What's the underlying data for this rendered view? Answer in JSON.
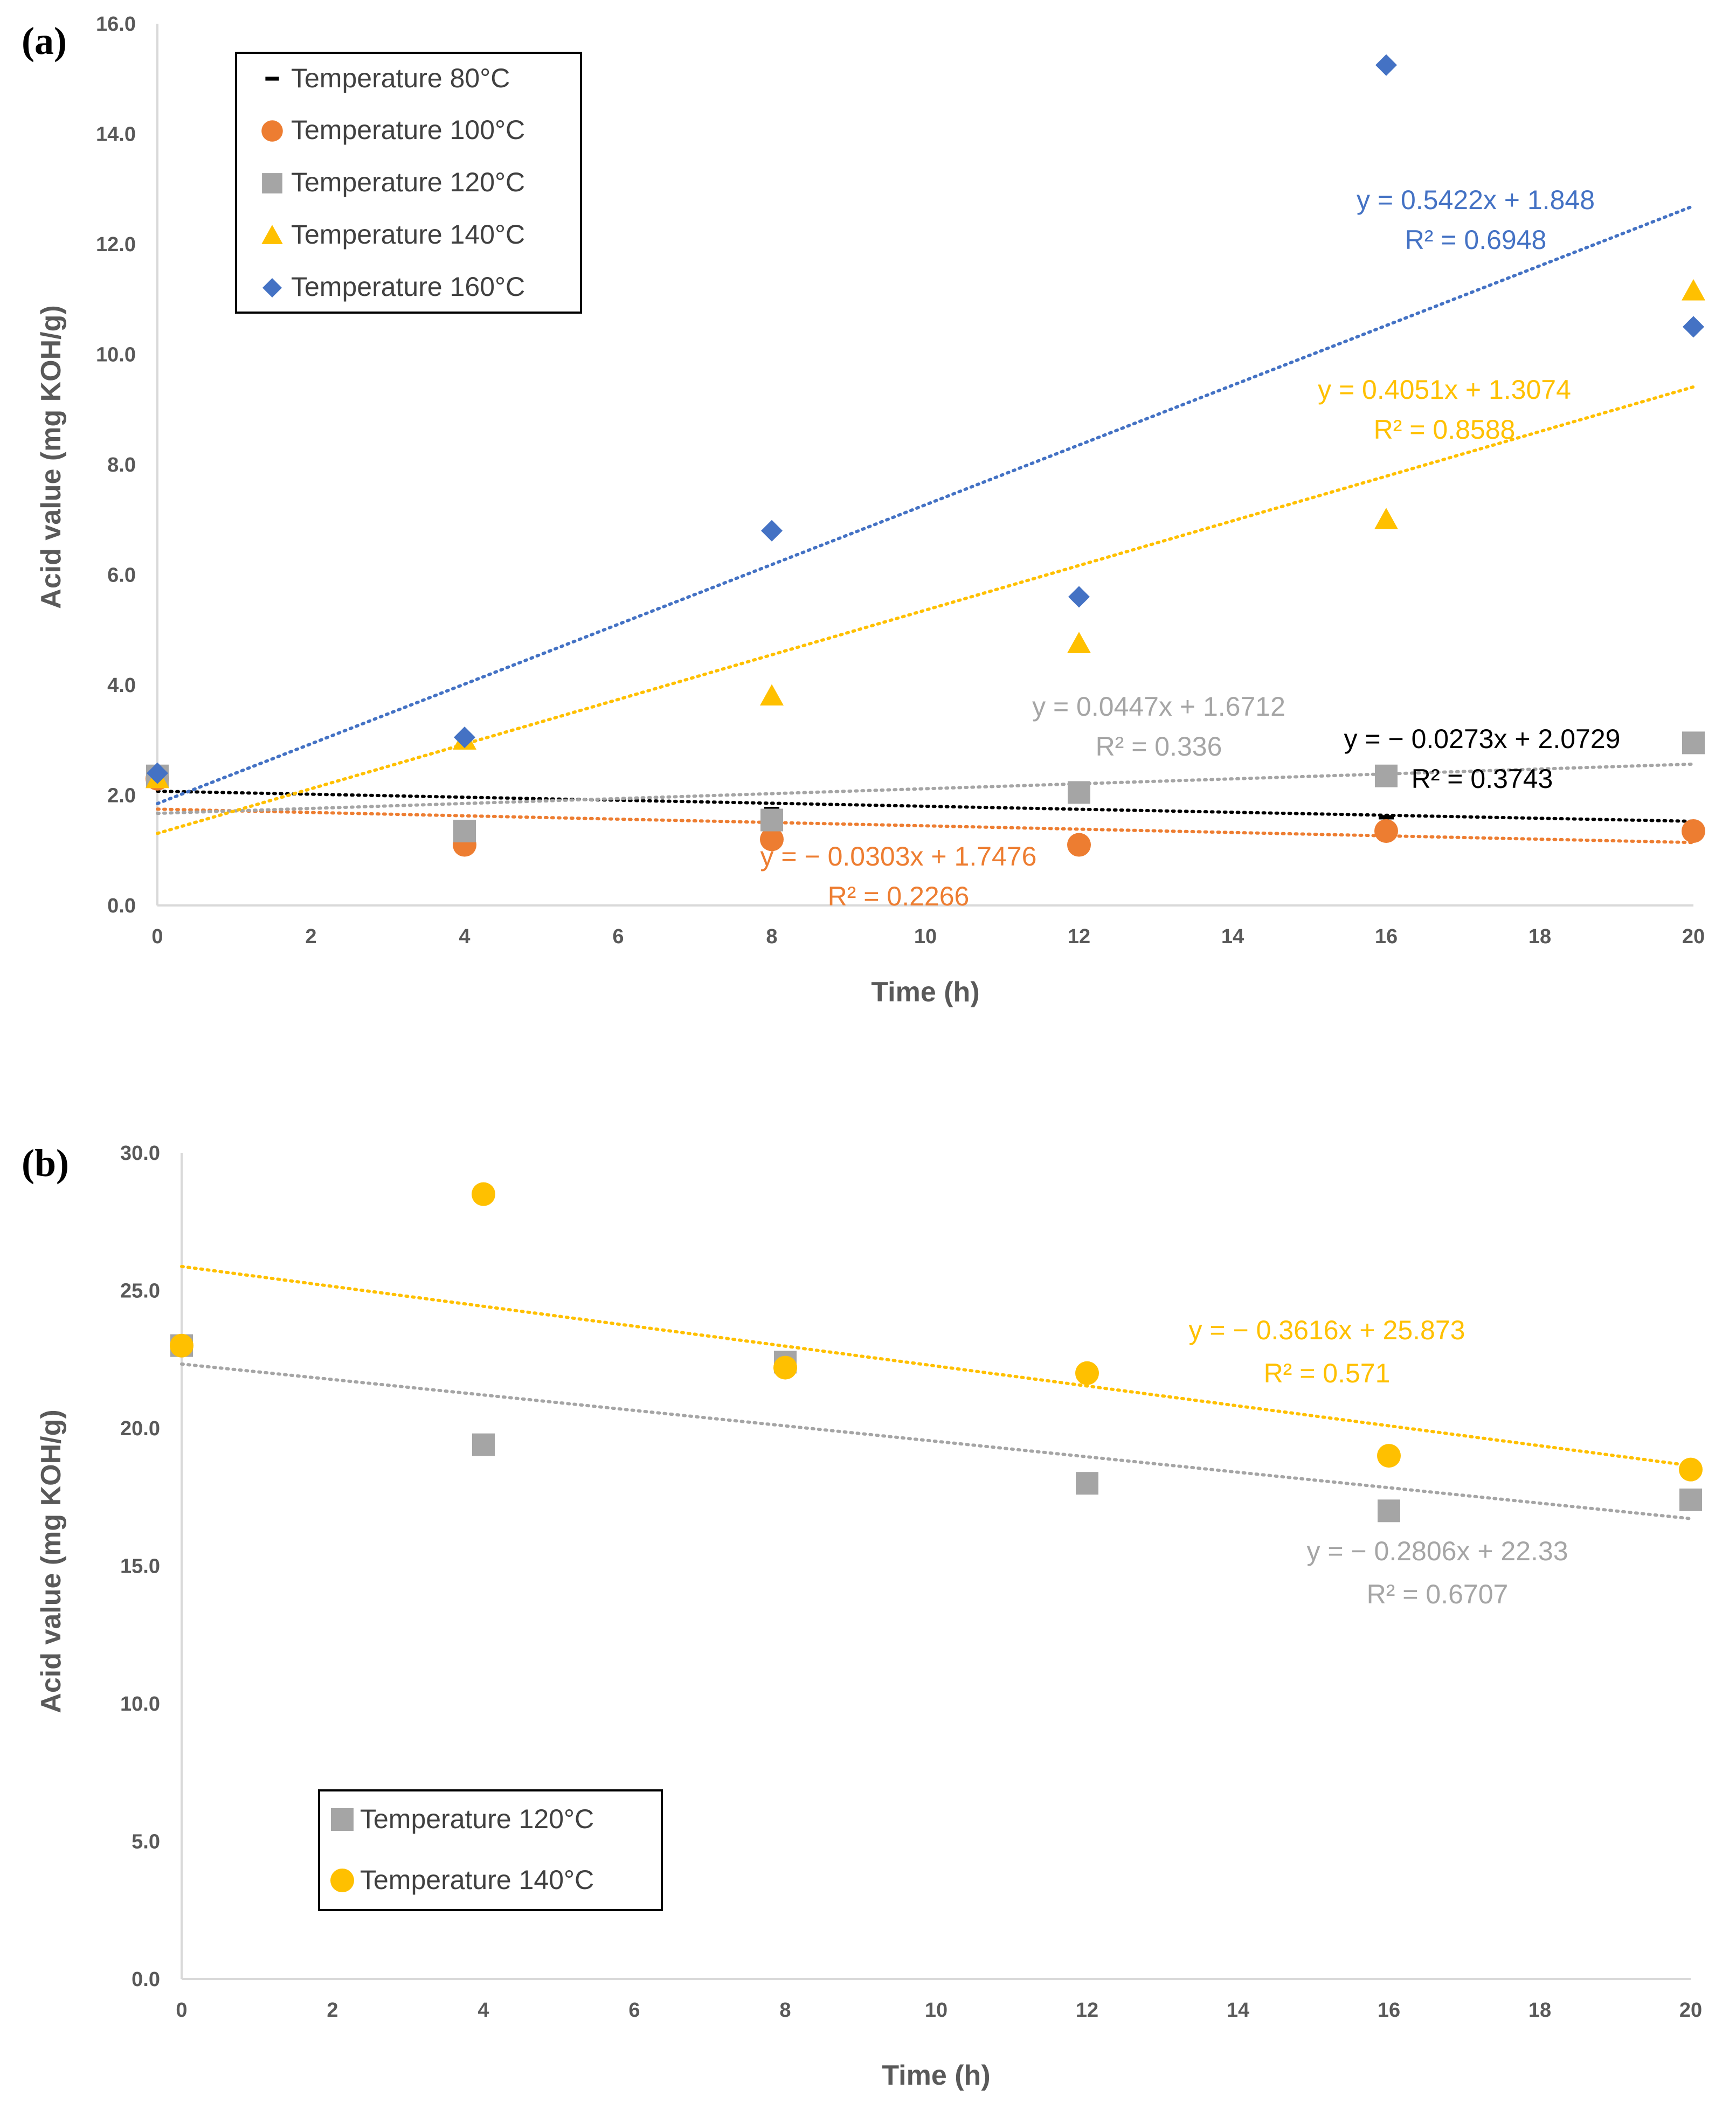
{
  "colors": {
    "t80": "#000000",
    "t100": "#ED7D31",
    "t120": "#A5A5A5",
    "t140": "#FFC000",
    "t160": "#4472C4",
    "axis": "#D9D9D9",
    "text": "#595959"
  },
  "chart_data": [
    {
      "panel": "(a)",
      "type": "scatter",
      "xlabel": "Time (h)",
      "ylabel": "Acid value (mg KOH/g)",
      "xlim": [
        0,
        20
      ],
      "ylim": [
        0,
        16
      ],
      "xticks": [
        "0",
        "2",
        "4",
        "6",
        "8",
        "10",
        "12",
        "14",
        "16",
        "18",
        "20"
      ],
      "yticks": [
        "0.0",
        "2.0",
        "4.0",
        "6.0",
        "8.0",
        "10.0",
        "12.0",
        "14.0",
        "16.0"
      ],
      "legend_position": "top-left",
      "series": [
        {
          "name": "Temperature 80°C",
          "marker": "dash",
          "color_key": "t80",
          "x": [
            0,
            4,
            8,
            12,
            16,
            20
          ],
          "y": [
            2.3,
            1.4,
            1.75,
            2.0,
            1.6,
            1.35
          ],
          "trend": {
            "slope": -0.0273,
            "intercept": 2.0729
          },
          "equation": "y = − 0.0273x + 2.0729",
          "r2": "R² = 0.3743"
        },
        {
          "name": "Temperature 100°C",
          "marker": "circle",
          "color_key": "t100",
          "x": [
            0,
            4,
            8,
            12,
            16,
            20
          ],
          "y": [
            2.3,
            1.1,
            1.2,
            1.1,
            1.35,
            1.35
          ],
          "trend": {
            "slope": -0.0303,
            "intercept": 1.7476
          },
          "equation": "y = − 0.0303x + 1.7476",
          "r2": "R² = 0.2266"
        },
        {
          "name": "Temperature 120°C",
          "marker": "square",
          "color_key": "t120",
          "x": [
            0,
            4,
            8,
            12,
            16,
            20
          ],
          "y": [
            2.35,
            1.35,
            1.55,
            2.05,
            2.35,
            2.95
          ],
          "trend": {
            "slope": 0.0447,
            "intercept": 1.6712
          },
          "equation": "y = 0.0447x + 1.6712",
          "r2": "R² = 0.336"
        },
        {
          "name": "Temperature 140°C",
          "marker": "triangle",
          "color_key": "t140",
          "x": [
            0,
            4,
            8,
            12,
            16,
            20
          ],
          "y": [
            2.3,
            3.0,
            3.8,
            4.75,
            7.0,
            11.15
          ],
          "trend": {
            "slope": 0.4051,
            "intercept": 1.3074
          },
          "equation": "y = 0.4051x + 1.3074",
          "r2": "R² = 0.8588"
        },
        {
          "name": "Temperature 160°C",
          "marker": "diamond",
          "color_key": "t160",
          "x": [
            0,
            4,
            8,
            12,
            16,
            20
          ],
          "y": [
            2.4,
            3.05,
            6.8,
            5.6,
            15.25,
            10.5
          ],
          "trend": {
            "slope": 0.5422,
            "intercept": 1.848
          },
          "equation": "y = 0.5422x + 1.848",
          "r2": "R² = 0.6948"
        }
      ]
    },
    {
      "panel": "(b)",
      "type": "scatter",
      "xlabel": "Time (h)",
      "ylabel": "Acid value (mg KOH/g)",
      "xlim": [
        0,
        20
      ],
      "ylim": [
        0,
        30
      ],
      "xticks": [
        "0",
        "2",
        "4",
        "6",
        "8",
        "10",
        "12",
        "14",
        "16",
        "18",
        "20"
      ],
      "yticks": [
        "0.0",
        "5.0",
        "10.0",
        "15.0",
        "20.0",
        "25.0",
        "30.0"
      ],
      "legend_position": "bottom-left",
      "series": [
        {
          "name": "Temperature 120°C",
          "marker": "square",
          "color_key": "t120",
          "x": [
            0,
            4,
            8,
            12,
            16,
            20
          ],
          "y": [
            23.0,
            19.4,
            22.4,
            18.0,
            17.0,
            17.4
          ],
          "trend": {
            "slope": -0.2806,
            "intercept": 22.33
          },
          "equation": "y = − 0.2806x + 22.33",
          "r2": "R² = 0.6707"
        },
        {
          "name": "Temperature 140°C",
          "marker": "circle",
          "color_key": "t140",
          "x": [
            0,
            4,
            8,
            12,
            16,
            20
          ],
          "y": [
            23.0,
            28.5,
            22.2,
            22.0,
            19.0,
            18.5
          ],
          "trend": {
            "slope": -0.3616,
            "intercept": 25.873
          },
          "equation": "y = − 0.3616x + 25.873",
          "r2": "R² = 0.571"
        }
      ]
    }
  ]
}
